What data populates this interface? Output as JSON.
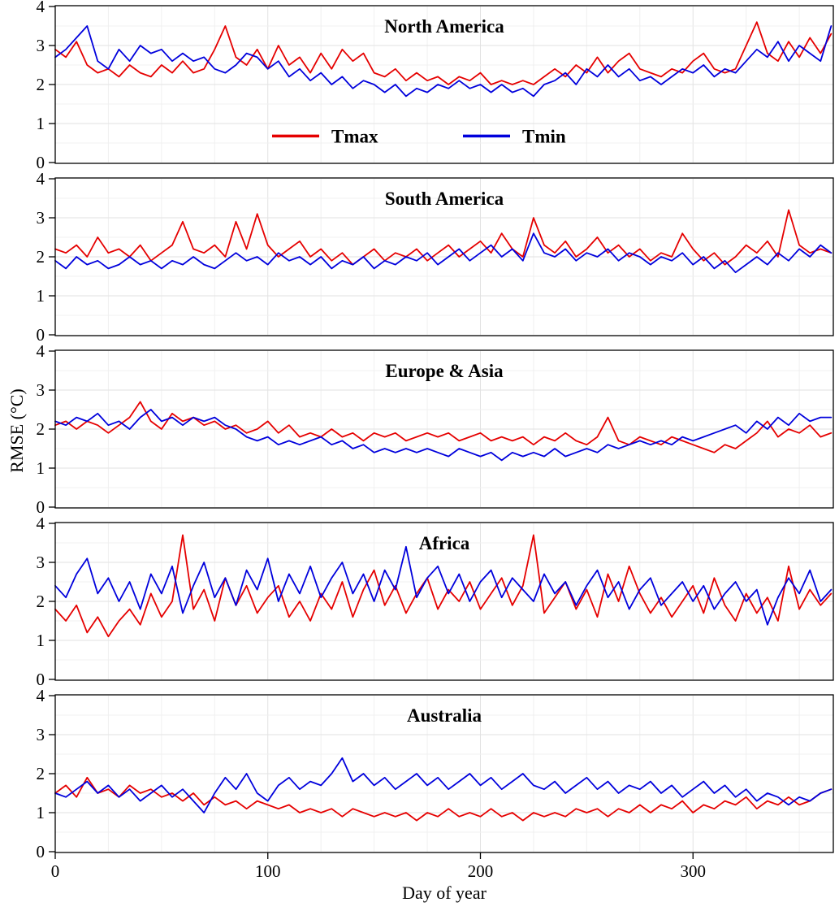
{
  "chart_meta": {
    "xlabel": "Day of year",
    "ylabel": "RMSE (°C)",
    "xlim": [
      0,
      366
    ],
    "ylim": [
      0,
      4
    ],
    "x_ticks": [
      0,
      100,
      200,
      300
    ],
    "y_ticks": [
      0,
      1,
      2,
      3,
      4
    ],
    "grid": "on",
    "legend_position": "inside-first-panel",
    "colors": {
      "tmax": "#e50000",
      "tmin": "#0000dc"
    },
    "legend": [
      {
        "label": "Tmax",
        "color": "#e50000"
      },
      {
        "label": "Tmin",
        "color": "#0000dc"
      }
    ],
    "x": [
      0,
      5,
      10,
      15,
      20,
      25,
      30,
      35,
      40,
      45,
      50,
      55,
      60,
      65,
      70,
      75,
      80,
      85,
      90,
      95,
      100,
      105,
      110,
      115,
      120,
      125,
      130,
      135,
      140,
      145,
      150,
      155,
      160,
      165,
      170,
      175,
      180,
      185,
      190,
      195,
      200,
      205,
      210,
      215,
      220,
      225,
      230,
      235,
      240,
      245,
      250,
      255,
      260,
      265,
      270,
      275,
      280,
      285,
      290,
      295,
      300,
      305,
      310,
      315,
      320,
      325,
      330,
      335,
      340,
      345,
      350,
      355,
      360,
      365
    ]
  },
  "chart_data": [
    {
      "type": "line",
      "title": "North America",
      "series": [
        {
          "name": "Tmax",
          "values": [
            2.9,
            2.7,
            3.1,
            2.5,
            2.3,
            2.4,
            2.2,
            2.5,
            2.3,
            2.2,
            2.5,
            2.3,
            2.6,
            2.3,
            2.4,
            2.9,
            3.5,
            2.7,
            2.5,
            2.9,
            2.4,
            3.0,
            2.5,
            2.7,
            2.3,
            2.8,
            2.4,
            2.9,
            2.6,
            2.8,
            2.3,
            2.2,
            2.4,
            2.1,
            2.3,
            2.1,
            2.2,
            2.0,
            2.2,
            2.1,
            2.3,
            2.0,
            2.1,
            2.0,
            2.1,
            2.0,
            2.2,
            2.4,
            2.2,
            2.5,
            2.3,
            2.7,
            2.3,
            2.6,
            2.8,
            2.4,
            2.3,
            2.2,
            2.4,
            2.3,
            2.6,
            2.8,
            2.4,
            2.3,
            2.4,
            3.0,
            3.6,
            2.8,
            2.6,
            3.1,
            2.7,
            3.2,
            2.8,
            3.3
          ]
        },
        {
          "name": "Tmin",
          "values": [
            2.7,
            2.9,
            3.2,
            3.5,
            2.6,
            2.4,
            2.9,
            2.6,
            3.0,
            2.8,
            2.9,
            2.6,
            2.8,
            2.6,
            2.7,
            2.4,
            2.3,
            2.5,
            2.8,
            2.7,
            2.4,
            2.6,
            2.2,
            2.4,
            2.1,
            2.3,
            2.0,
            2.2,
            1.9,
            2.1,
            2.0,
            1.8,
            2.0,
            1.7,
            1.9,
            1.8,
            2.0,
            1.9,
            2.1,
            1.9,
            2.0,
            1.8,
            2.0,
            1.8,
            1.9,
            1.7,
            2.0,
            2.1,
            2.3,
            2.0,
            2.4,
            2.2,
            2.5,
            2.2,
            2.4,
            2.1,
            2.2,
            2.0,
            2.2,
            2.4,
            2.3,
            2.5,
            2.2,
            2.4,
            2.3,
            2.6,
            2.9,
            2.7,
            3.1,
            2.6,
            3.0,
            2.8,
            2.6,
            3.5
          ]
        }
      ]
    },
    {
      "type": "line",
      "title": "South America",
      "series": [
        {
          "name": "Tmax",
          "values": [
            2.2,
            2.1,
            2.3,
            2.0,
            2.5,
            2.1,
            2.2,
            2.0,
            2.3,
            1.9,
            2.1,
            2.3,
            2.9,
            2.2,
            2.1,
            2.3,
            2.0,
            2.9,
            2.2,
            3.1,
            2.3,
            2.0,
            2.2,
            2.4,
            2.0,
            2.2,
            1.9,
            2.1,
            1.8,
            2.0,
            2.2,
            1.9,
            2.1,
            2.0,
            2.2,
            1.9,
            2.1,
            2.3,
            2.0,
            2.2,
            2.4,
            2.1,
            2.6,
            2.2,
            2.0,
            3.0,
            2.3,
            2.1,
            2.4,
            2.0,
            2.2,
            2.5,
            2.1,
            2.3,
            2.0,
            2.2,
            1.9,
            2.1,
            2.0,
            2.6,
            2.2,
            1.9,
            2.1,
            1.8,
            2.0,
            2.3,
            2.1,
            2.4,
            2.0,
            3.2,
            2.3,
            2.1,
            2.2,
            2.1
          ]
        },
        {
          "name": "Tmin",
          "values": [
            1.9,
            1.7,
            2.0,
            1.8,
            1.9,
            1.7,
            1.8,
            2.0,
            1.8,
            1.9,
            1.7,
            1.9,
            1.8,
            2.0,
            1.8,
            1.7,
            1.9,
            2.1,
            1.9,
            2.0,
            1.8,
            2.1,
            1.9,
            2.0,
            1.8,
            2.0,
            1.7,
            1.9,
            1.8,
            2.0,
            1.7,
            1.9,
            1.8,
            2.0,
            1.9,
            2.1,
            1.8,
            2.0,
            2.2,
            1.9,
            2.1,
            2.3,
            2.0,
            2.2,
            1.9,
            2.6,
            2.1,
            2.0,
            2.2,
            1.9,
            2.1,
            2.0,
            2.2,
            1.9,
            2.1,
            2.0,
            1.8,
            2.0,
            1.9,
            2.1,
            1.8,
            2.0,
            1.7,
            1.9,
            1.6,
            1.8,
            2.0,
            1.8,
            2.1,
            1.9,
            2.2,
            2.0,
            2.3,
            2.1
          ]
        }
      ]
    },
    {
      "type": "line",
      "title": "Europe & Asia",
      "series": [
        {
          "name": "Tmax",
          "values": [
            2.1,
            2.2,
            2.0,
            2.2,
            2.1,
            1.9,
            2.1,
            2.3,
            2.7,
            2.2,
            2.0,
            2.4,
            2.2,
            2.3,
            2.1,
            2.2,
            2.0,
            2.1,
            1.9,
            2.0,
            2.2,
            1.9,
            2.1,
            1.8,
            1.9,
            1.8,
            2.0,
            1.8,
            1.9,
            1.7,
            1.9,
            1.8,
            1.9,
            1.7,
            1.8,
            1.9,
            1.8,
            1.9,
            1.7,
            1.8,
            1.9,
            1.7,
            1.8,
            1.7,
            1.8,
            1.6,
            1.8,
            1.7,
            1.9,
            1.7,
            1.6,
            1.8,
            2.3,
            1.7,
            1.6,
            1.8,
            1.7,
            1.6,
            1.8,
            1.7,
            1.6,
            1.5,
            1.4,
            1.6,
            1.5,
            1.7,
            1.9,
            2.2,
            1.8,
            2.0,
            1.9,
            2.1,
            1.8,
            1.9
          ]
        },
        {
          "name": "Tmin",
          "values": [
            2.2,
            2.1,
            2.3,
            2.2,
            2.4,
            2.1,
            2.2,
            2.0,
            2.3,
            2.5,
            2.2,
            2.3,
            2.1,
            2.3,
            2.2,
            2.3,
            2.1,
            2.0,
            1.8,
            1.7,
            1.8,
            1.6,
            1.7,
            1.6,
            1.7,
            1.8,
            1.6,
            1.7,
            1.5,
            1.6,
            1.4,
            1.5,
            1.4,
            1.5,
            1.4,
            1.5,
            1.4,
            1.3,
            1.5,
            1.4,
            1.3,
            1.4,
            1.2,
            1.4,
            1.3,
            1.4,
            1.3,
            1.5,
            1.3,
            1.4,
            1.5,
            1.4,
            1.6,
            1.5,
            1.6,
            1.7,
            1.6,
            1.7,
            1.6,
            1.8,
            1.7,
            1.8,
            1.9,
            2.0,
            2.1,
            1.9,
            2.2,
            2.0,
            2.3,
            2.1,
            2.4,
            2.2,
            2.3,
            2.3
          ]
        }
      ]
    },
    {
      "type": "line",
      "title": "Africa",
      "series": [
        {
          "name": "Tmax",
          "values": [
            1.8,
            1.5,
            1.9,
            1.2,
            1.6,
            1.1,
            1.5,
            1.8,
            1.4,
            2.2,
            1.6,
            2.0,
            3.7,
            1.8,
            2.3,
            1.5,
            2.6,
            1.9,
            2.4,
            1.7,
            2.1,
            2.4,
            1.6,
            2.0,
            1.5,
            2.2,
            1.8,
            2.5,
            1.6,
            2.3,
            2.8,
            1.9,
            2.4,
            1.7,
            2.2,
            2.6,
            1.8,
            2.3,
            2.0,
            2.5,
            1.8,
            2.2,
            2.6,
            1.9,
            2.4,
            3.7,
            1.7,
            2.1,
            2.5,
            1.8,
            2.3,
            1.6,
            2.7,
            2.0,
            2.9,
            2.2,
            1.7,
            2.1,
            1.6,
            2.0,
            2.4,
            1.7,
            2.6,
            1.9,
            1.5,
            2.2,
            1.7,
            2.1,
            1.5,
            2.9,
            1.8,
            2.3,
            1.9,
            2.2
          ]
        },
        {
          "name": "Tmin",
          "values": [
            2.4,
            2.1,
            2.7,
            3.1,
            2.2,
            2.6,
            2.0,
            2.5,
            1.8,
            2.7,
            2.2,
            2.9,
            1.7,
            2.4,
            3.0,
            2.1,
            2.6,
            1.9,
            2.8,
            2.3,
            3.1,
            2.0,
            2.7,
            2.2,
            2.9,
            2.1,
            2.6,
            3.0,
            2.2,
            2.7,
            2.0,
            2.8,
            2.3,
            3.4,
            2.1,
            2.6,
            2.9,
            2.2,
            2.7,
            2.0,
            2.5,
            2.8,
            2.1,
            2.6,
            2.3,
            2.0,
            2.7,
            2.2,
            2.5,
            1.9,
            2.4,
            2.8,
            2.1,
            2.5,
            1.8,
            2.3,
            2.6,
            1.9,
            2.2,
            2.5,
            2.0,
            2.4,
            1.8,
            2.2,
            2.5,
            2.0,
            2.3,
            1.4,
            2.1,
            2.6,
            2.2,
            2.8,
            2.0,
            2.3
          ]
        }
      ]
    },
    {
      "type": "line",
      "title": "Australia",
      "series": [
        {
          "name": "Tmax",
          "values": [
            1.5,
            1.7,
            1.4,
            1.9,
            1.5,
            1.6,
            1.4,
            1.7,
            1.5,
            1.6,
            1.4,
            1.5,
            1.3,
            1.5,
            1.2,
            1.4,
            1.2,
            1.3,
            1.1,
            1.3,
            1.2,
            1.1,
            1.2,
            1.0,
            1.1,
            1.0,
            1.1,
            0.9,
            1.1,
            1.0,
            0.9,
            1.0,
            0.9,
            1.0,
            0.8,
            1.0,
            0.9,
            1.1,
            0.9,
            1.0,
            0.9,
            1.1,
            0.9,
            1.0,
            0.8,
            1.0,
            0.9,
            1.0,
            0.9,
            1.1,
            1.0,
            1.1,
            0.9,
            1.1,
            1.0,
            1.2,
            1.0,
            1.2,
            1.1,
            1.3,
            1.0,
            1.2,
            1.1,
            1.3,
            1.2,
            1.4,
            1.1,
            1.3,
            1.2,
            1.4,
            1.2,
            1.3,
            1.5,
            1.6
          ]
        },
        {
          "name": "Tmin",
          "values": [
            1.5,
            1.4,
            1.6,
            1.8,
            1.5,
            1.7,
            1.4,
            1.6,
            1.3,
            1.5,
            1.7,
            1.4,
            1.6,
            1.3,
            1.0,
            1.5,
            1.9,
            1.6,
            2.0,
            1.5,
            1.3,
            1.7,
            1.9,
            1.6,
            1.8,
            1.7,
            2.0,
            2.4,
            1.8,
            2.0,
            1.7,
            1.9,
            1.6,
            1.8,
            2.0,
            1.7,
            1.9,
            1.6,
            1.8,
            2.0,
            1.7,
            1.9,
            1.6,
            1.8,
            2.0,
            1.7,
            1.6,
            1.8,
            1.5,
            1.7,
            1.9,
            1.6,
            1.8,
            1.5,
            1.7,
            1.6,
            1.8,
            1.5,
            1.7,
            1.4,
            1.6,
            1.8,
            1.5,
            1.7,
            1.4,
            1.6,
            1.3,
            1.5,
            1.4,
            1.2,
            1.4,
            1.3,
            1.5,
            1.6
          ]
        }
      ]
    }
  ]
}
